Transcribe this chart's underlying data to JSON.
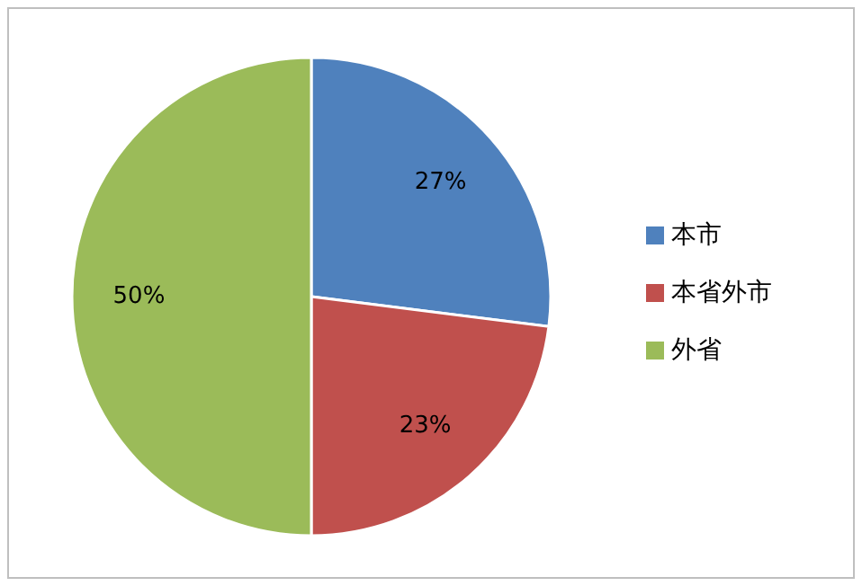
{
  "chart_data": {
    "type": "pie",
    "categories": [
      "本市",
      "本省外市",
      "外省"
    ],
    "values": [
      27,
      23,
      50
    ],
    "colors": [
      "#4f81bd",
      "#c0504d",
      "#9bbb59"
    ],
    "value_labels": [
      "27%",
      "23%",
      "50%"
    ],
    "legend": "right"
  }
}
